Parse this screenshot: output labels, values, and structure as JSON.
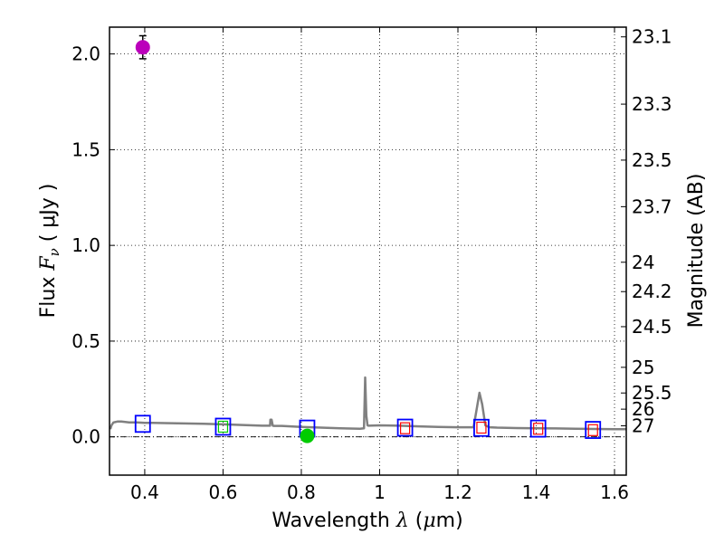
{
  "chart_data": {
    "type": "scatter",
    "title": "",
    "xlabel": {
      "prefix": "Wavelength  ",
      "var": "λ",
      "unit_open": " (",
      "unit_mu": "μ",
      "unit_rest": "m)"
    },
    "ylabel": {
      "prefix": "Flux  ",
      "var": "F",
      "var_sub": "ν",
      "unit": "  ( μJy )"
    },
    "y2label": "Magnitude (AB)",
    "xlim": [
      0.31,
      1.63
    ],
    "ylim": [
      -0.2,
      2.14
    ],
    "grid": true,
    "x_ticks": [
      "0.4",
      "0.6",
      "0.8",
      "1",
      "1.2",
      "1.4",
      "1.6"
    ],
    "x_tick_values": [
      0.4,
      0.6,
      0.8,
      1.0,
      1.2,
      1.4,
      1.6
    ],
    "y_ticks": [
      "0.0",
      "0.5",
      "1.0",
      "1.5",
      "2.0"
    ],
    "y_tick_values": [
      0.0,
      0.5,
      1.0,
      1.5,
      2.0
    ],
    "mag_ticks": [
      "23.1",
      "23.3",
      "23.5",
      "23.7",
      "24",
      "24.2",
      "24.5",
      "25",
      "25.5",
      "26",
      "27"
    ],
    "mag_tick_values": [
      23.1,
      23.3,
      23.5,
      23.7,
      24.0,
      24.2,
      24.5,
      25.0,
      25.5,
      26.0,
      27.0
    ],
    "series": [
      {
        "name": "model spectrum",
        "style": "line",
        "color": "#808080",
        "x": [
          0.312,
          0.315,
          0.32,
          0.33,
          0.34,
          0.36,
          0.38,
          0.4,
          0.42,
          0.45,
          0.5,
          0.55,
          0.6,
          0.65,
          0.7,
          0.72,
          0.721,
          0.724,
          0.727,
          0.73,
          0.75,
          0.8,
          0.85,
          0.9,
          0.95,
          0.96,
          0.963,
          0.966,
          0.969,
          0.972,
          1.0,
          1.05,
          1.1,
          1.15,
          1.2,
          1.24,
          1.255,
          1.262,
          1.27,
          1.28,
          1.3,
          1.35,
          1.4,
          1.45,
          1.5,
          1.55,
          1.6,
          1.63
        ],
        "y": [
          0.04,
          0.06,
          0.075,
          0.08,
          0.08,
          0.075,
          0.075,
          0.073,
          0.073,
          0.072,
          0.07,
          0.068,
          0.065,
          0.062,
          0.058,
          0.058,
          0.09,
          0.09,
          0.058,
          0.057,
          0.057,
          0.052,
          0.048,
          0.045,
          0.042,
          0.045,
          0.31,
          0.11,
          0.06,
          0.058,
          0.06,
          0.058,
          0.055,
          0.052,
          0.05,
          0.05,
          0.23,
          0.17,
          0.06,
          0.05,
          0.048,
          0.046,
          0.045,
          0.044,
          0.042,
          0.041,
          0.04,
          0.04
        ]
      },
      {
        "name": "model photometry",
        "style": "open-square",
        "color": "#0000ff",
        "x": [
          0.395,
          0.6,
          0.815,
          1.065,
          1.26,
          1.405,
          1.545
        ],
        "y": [
          0.068,
          0.053,
          0.043,
          0.048,
          0.047,
          0.043,
          0.036
        ]
      },
      {
        "name": "observed photometry (red)",
        "style": "small-open-square",
        "color": "#ff0000",
        "x": [
          1.065,
          1.26,
          1.405,
          1.545
        ],
        "y": [
          0.045,
          0.048,
          0.042,
          0.035
        ]
      },
      {
        "name": "observed photometry (green)",
        "style": "small-open-square",
        "color": "#00cc00",
        "x": [
          0.6
        ],
        "y": [
          0.053
        ]
      },
      {
        "name": "detection 1",
        "style": "filled-circle",
        "color": "#bb00bb",
        "x": [
          0.395
        ],
        "y": [
          2.035
        ],
        "yerr": [
          0.06
        ]
      },
      {
        "name": "detection 2",
        "style": "filled-circle",
        "color": "#00cc00",
        "x": [
          0.815
        ],
        "y": [
          0.005
        ],
        "yerr": [
          0.015
        ]
      }
    ]
  }
}
